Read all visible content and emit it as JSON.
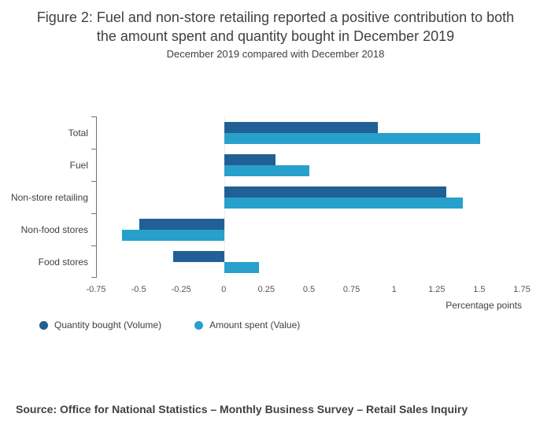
{
  "chart_data": {
    "type": "bar",
    "orientation": "horizontal",
    "title": "Figure 2: Fuel and non-store retailing reported a positive contribution to both the amount spent and quantity bought in December 2019",
    "subtitle": "December 2019 compared with December 2018",
    "categories": [
      "Total",
      "Fuel",
      "Non-store retailing",
      "Non-food stores",
      "Food stores"
    ],
    "series": [
      {
        "name": "Quantity bought (Volume)",
        "color": "#206095",
        "values": [
          0.9,
          0.3,
          1.3,
          -0.5,
          -0.3
        ]
      },
      {
        "name": "Amount spent (Value)",
        "color": "#27A0CC",
        "values": [
          1.5,
          0.5,
          1.4,
          -0.6,
          0.2
        ]
      }
    ],
    "xlabel": "Percentage points",
    "xlim": [
      -0.75,
      1.75
    ],
    "xticks": [
      -0.75,
      -0.5,
      -0.25,
      0,
      0.25,
      0.5,
      0.75,
      1,
      1.25,
      1.5,
      1.75
    ],
    "xtick_labels": [
      "-0.75",
      "-0.5",
      "-0.25",
      "0",
      "0.25",
      "0.5",
      "0.75",
      "1",
      "1.25",
      "1.5",
      "1.75"
    ],
    "legend_position": "bottom-left",
    "grid": false
  },
  "source": {
    "text": "Source: Office for National Statistics – Monthly Business Survey – Retail Sales Inquiry"
  }
}
